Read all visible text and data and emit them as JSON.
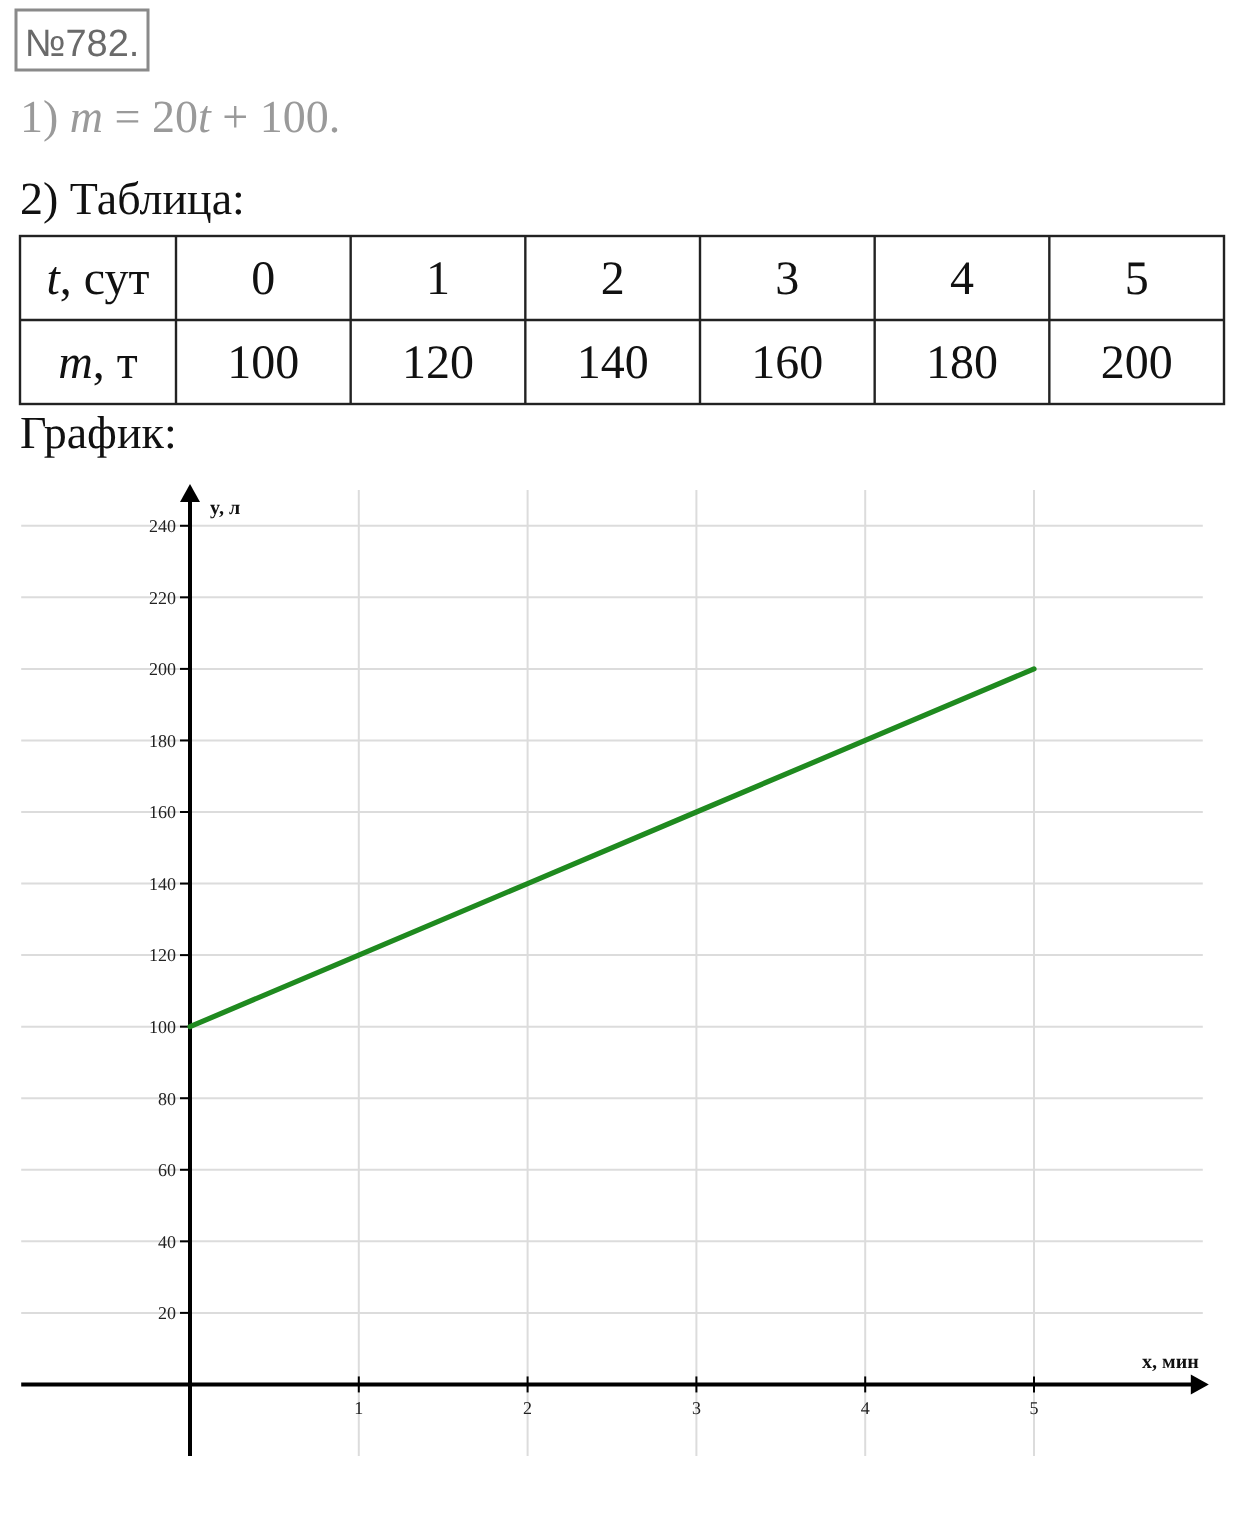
{
  "chart_data": {
    "type": "line",
    "title": "График:",
    "xlabel": "x, мин",
    "ylabel": "y, л",
    "annotations": [
      "№782.",
      "1) m = 20t + 100.",
      "2) Таблица:",
      "t, сут",
      "0",
      "1",
      "2",
      "3",
      "4",
      "5",
      "m, т",
      "100",
      "120",
      "140",
      "160",
      "180",
      "200"
    ],
    "x": [
      0,
      1,
      2,
      3,
      4,
      5
    ],
    "series": [
      {
        "color": "#1f8a1f",
        "values": [
          100,
          120,
          140,
          160,
          180,
          200
        ]
      }
    ],
    "xlim": [
      -1,
      6
    ],
    "ylim": [
      -20,
      250
    ],
    "xticks": [
      1,
      2,
      3,
      4,
      5
    ],
    "yticks": [
      20,
      40,
      60,
      80,
      100,
      120,
      140,
      160,
      180,
      200,
      220,
      240
    ],
    "grid": true,
    "marker": "none",
    "line_style": "solid"
  }
}
